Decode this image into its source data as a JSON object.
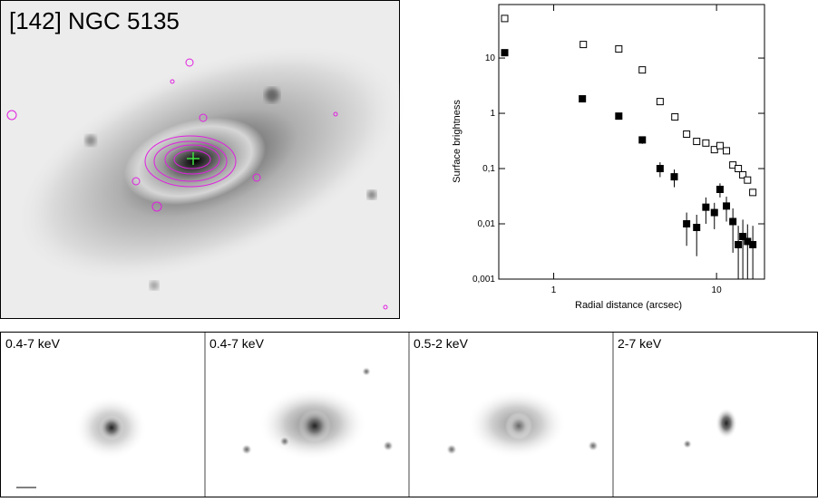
{
  "image": {
    "title": "[142] NGC 5135"
  },
  "panels": [
    {
      "label": "0.4-7 keV"
    },
    {
      "label": "0.4-7 keV"
    },
    {
      "label": "0.5-2 keV"
    },
    {
      "label": "2-7 keV"
    }
  ],
  "chart_data": {
    "type": "scatter",
    "y_label": "Surface brightness",
    "x_label": "Radial distance (arcsec)",
    "x_log": true,
    "y_log": true,
    "xlim": [
      0.46,
      19.7
    ],
    "ylim": [
      0.001,
      93
    ],
    "xticks": [
      1,
      10
    ],
    "yticks": [
      {
        "value": 0.001,
        "label": "0,001"
      },
      {
        "value": 0.01,
        "label": "0,01"
      },
      {
        "value": 0.1,
        "label": "0,1"
      },
      1,
      10
    ],
    "series": [
      {
        "marker": "open-square",
        "color": "#000000",
        "x": [
          0.5,
          1.52,
          2.51,
          3.5,
          4.5,
          5.55,
          6.55,
          7.55,
          8.6,
          9.7,
          10.5,
          11.5,
          12.6,
          13.6,
          14.5,
          15.5,
          16.7
        ],
        "values": [
          52,
          17.6,
          14.6,
          6.1,
          1.63,
          0.86,
          0.42,
          0.31,
          0.29,
          0.22,
          0.26,
          0.21,
          0.116,
          0.1,
          0.077,
          0.062,
          0.037
        ]
      },
      {
        "marker": "filled-square",
        "color": "#000000",
        "x": [
          0.5,
          1.5,
          2.51,
          3.5,
          4.5,
          5.5,
          6.55,
          7.55,
          8.6,
          9.7,
          10.5,
          11.5,
          12.6,
          13.6,
          14.5,
          15.5,
          16.7
        ],
        "values": [
          12.5,
          1.83,
          0.89,
          0.33,
          0.1,
          0.071,
          0.01,
          0.0086,
          0.02,
          0.016,
          0.042,
          0.021,
          0.011,
          0.0042,
          0.0059,
          0.0048,
          0.0042
        ],
        "errors": [
          1,
          0.15,
          0.08,
          0.05,
          0.03,
          0.025,
          0.006,
          0.006,
          0.01,
          0.008,
          0.012,
          0.01,
          0.008,
          0.005,
          0.006,
          0.005,
          0.005
        ]
      }
    ]
  }
}
